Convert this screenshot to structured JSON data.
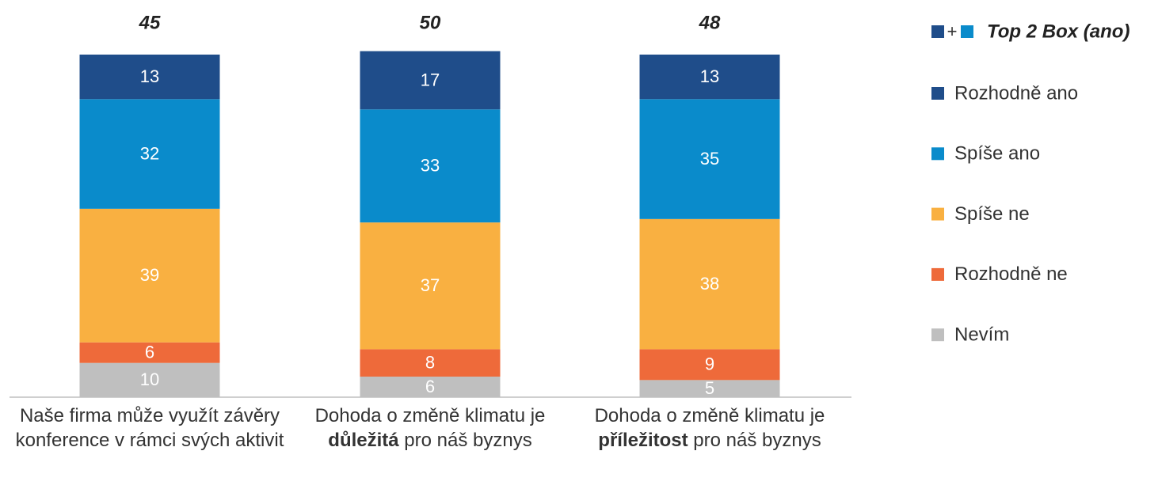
{
  "chart_data": {
    "type": "stacked_bar",
    "categories": [
      [
        {
          "text": "Naše firma může využít závěry konference v rámci svých aktivit",
          "bold": false
        }
      ],
      [
        {
          "text": "Dohoda o změně klimatu je ",
          "bold": false
        },
        {
          "text": "důležitá",
          "bold": true
        },
        {
          "text": " pro náš byznys",
          "bold": false
        }
      ],
      [
        {
          "text": "Dohoda o změně klimatu je ",
          "bold": false
        },
        {
          "text": "příležitost",
          "bold": true
        },
        {
          "text": " pro náš byznys",
          "bold": false
        }
      ]
    ],
    "series": [
      {
        "name": "Nevím",
        "color": "#bfbfbf",
        "values": [
          10,
          6,
          5
        ]
      },
      {
        "name": "Rozhodně ne",
        "color": "#ee6a3a",
        "values": [
          6,
          8,
          9
        ]
      },
      {
        "name": "Spíše ne",
        "color": "#f9b041",
        "values": [
          39,
          37,
          38
        ]
      },
      {
        "name": "Spíše ano",
        "color": "#0a8bcb",
        "values": [
          32,
          33,
          35
        ]
      },
      {
        "name": "Rozhodně ano",
        "color": "#1f4d8a",
        "values": [
          13,
          17,
          13
        ]
      }
    ],
    "top2box": {
      "name": "Top 2 Box (ano)",
      "symbol": "+",
      "values": [
        45,
        50,
        48
      ]
    }
  }
}
